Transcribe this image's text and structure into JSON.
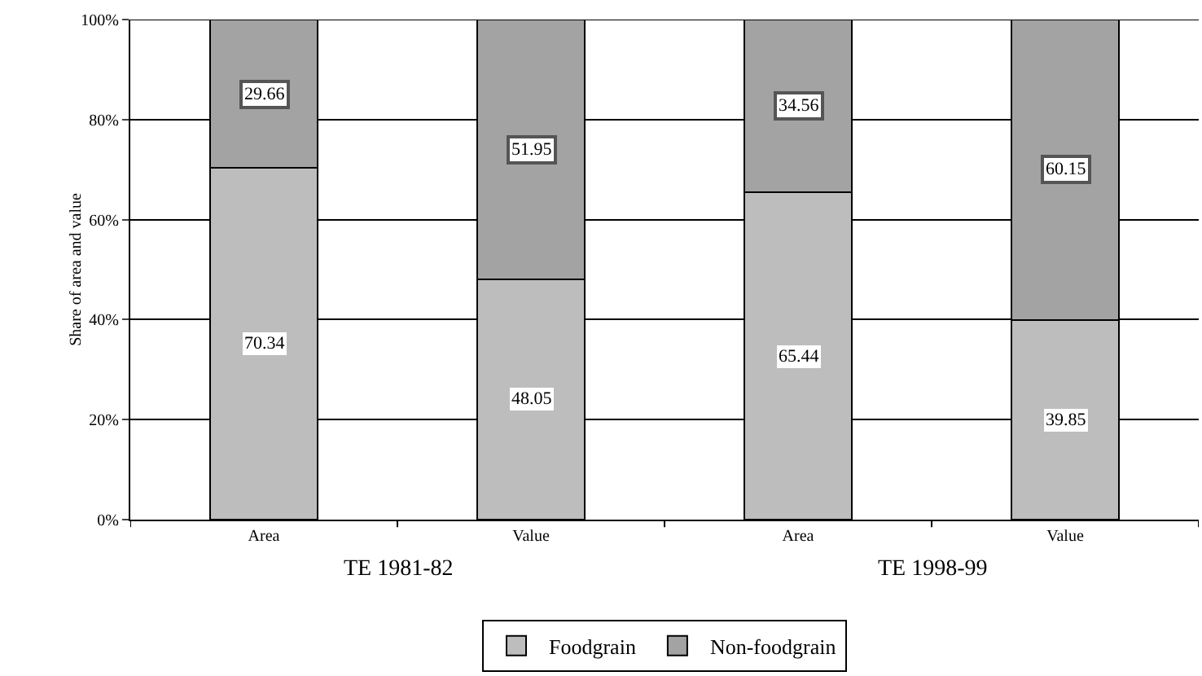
{
  "chart_data": {
    "type": "bar",
    "stacked": true,
    "categories": [
      "Area",
      "Value",
      "Area",
      "Value"
    ],
    "series": [
      {
        "name": "Foodgrain",
        "color": "#bdbdbd",
        "values": [
          70.34,
          48.05,
          65.44,
          39.85
        ]
      },
      {
        "name": "Non-foodgrain",
        "color": "#a3a3a3",
        "values": [
          29.66,
          51.95,
          34.56,
          60.15
        ]
      }
    ],
    "data_labels": true,
    "ylabel": "Share of area and value",
    "ylim": [
      0,
      100
    ],
    "yticks": [
      {
        "value": 0,
        "label": "0%"
      },
      {
        "value": 20,
        "label": "20%"
      },
      {
        "value": 40,
        "label": "40%"
      },
      {
        "value": 60,
        "label": "60%"
      },
      {
        "value": 80,
        "label": "80%"
      },
      {
        "value": 100,
        "label": "100%"
      }
    ],
    "grid": "y",
    "legend": "bottom",
    "annotations": [
      "TE 1981-82",
      "TE 1998-99"
    ]
  }
}
